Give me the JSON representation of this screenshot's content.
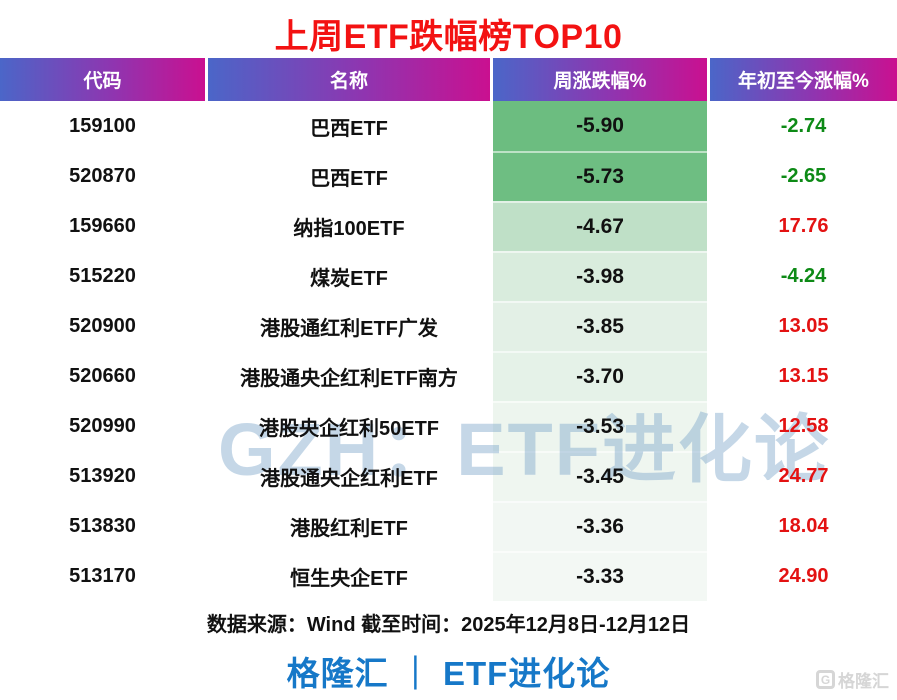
{
  "title": "上周ETF跌幅榜TOP10",
  "watermark": "GZH：ETF进化论",
  "colors": {
    "title_red": "#f31212",
    "header_gradient_left": "#4b66c8",
    "header_gradient_right": "#ca1090",
    "positive_red": "#e31212",
    "negative_green": "#0d8a16",
    "brand_blue": "#1678c8"
  },
  "table": {
    "headers": [
      "代码",
      "名称",
      "周涨跌幅%",
      "年初至今涨幅%"
    ],
    "rows": [
      {
        "code": "159100",
        "name": "巴西ETF",
        "week": "-5.90",
        "ytd": "-2.74",
        "week_bg": "#6cbd80",
        "ytd_color": "#0d8a16"
      },
      {
        "code": "520870",
        "name": "巴西ETF",
        "week": "-5.73",
        "ytd": "-2.65",
        "week_bg": "#6ebe82",
        "ytd_color": "#0d8a16"
      },
      {
        "code": "159660",
        "name": "纳指100ETF",
        "week": "-4.67",
        "ytd": "17.76",
        "week_bg": "#bfe0c7",
        "ytd_color": "#e31212"
      },
      {
        "code": "515220",
        "name": "煤炭ETF",
        "week": "-3.98",
        "ytd": "-4.24",
        "week_bg": "#d9ecdd",
        "ytd_color": "#0d8a16"
      },
      {
        "code": "520900",
        "name": "港股通红利ETF广发",
        "week": "-3.85",
        "ytd": "13.05",
        "week_bg": "#e3f0e6",
        "ytd_color": "#e31212"
      },
      {
        "code": "520660",
        "name": "港股通央企红利ETF南方",
        "week": "-3.70",
        "ytd": "13.15",
        "week_bg": "#e5f2e8",
        "ytd_color": "#e31212"
      },
      {
        "code": "520990",
        "name": "港股央企红利50ETF",
        "week": "-3.53",
        "ytd": "12.58",
        "week_bg": "#edf5ee",
        "ytd_color": "#e31212"
      },
      {
        "code": "513920",
        "name": "港股通央企红利ETF",
        "week": "-3.45",
        "ytd": "24.77",
        "week_bg": "#eff6f0",
        "ytd_color": "#e31212"
      },
      {
        "code": "513830",
        "name": "港股红利ETF",
        "week": "-3.36",
        "ytd": "18.04",
        "week_bg": "#f2f7f3",
        "ytd_color": "#e31212"
      },
      {
        "code": "513170",
        "name": "恒生央企ETF",
        "week": "-3.33",
        "ytd": "24.90",
        "week_bg": "#f3f8f4",
        "ytd_color": "#e31212"
      }
    ]
  },
  "footer": {
    "source": "数据来源：Wind 截至时间：2025年12月8日-12月12日",
    "brand": "格隆汇 ｜ ETF进化论",
    "logo_letter": "G",
    "logo_text": "格隆汇"
  },
  "chart_data": {
    "type": "table",
    "title": "上周ETF跌幅榜TOP10",
    "columns": [
      "代码",
      "名称",
      "周涨跌幅%",
      "年初至今涨幅%"
    ],
    "rows": [
      [
        "159100",
        "巴西ETF",
        -5.9,
        -2.74
      ],
      [
        "520870",
        "巴西ETF",
        -5.73,
        -2.65
      ],
      [
        "159660",
        "纳指100ETF",
        -4.67,
        17.76
      ],
      [
        "515220",
        "煤炭ETF",
        -3.98,
        -4.24
      ],
      [
        "520900",
        "港股通红利ETF广发",
        -3.85,
        13.05
      ],
      [
        "520660",
        "港股通央企红利ETF南方",
        -3.7,
        13.15
      ],
      [
        "520990",
        "港股央企红利50ETF",
        -3.53,
        12.58
      ],
      [
        "513920",
        "港股通央企红利ETF",
        -3.45,
        24.77
      ],
      [
        "513830",
        "港股红利ETF",
        -3.36,
        18.04
      ],
      [
        "513170",
        "恒生央企ETF",
        -3.33,
        24.9
      ]
    ],
    "notes": "周涨跌幅% column shaded green by magnitude; YTD negatives green text, positives red text"
  }
}
